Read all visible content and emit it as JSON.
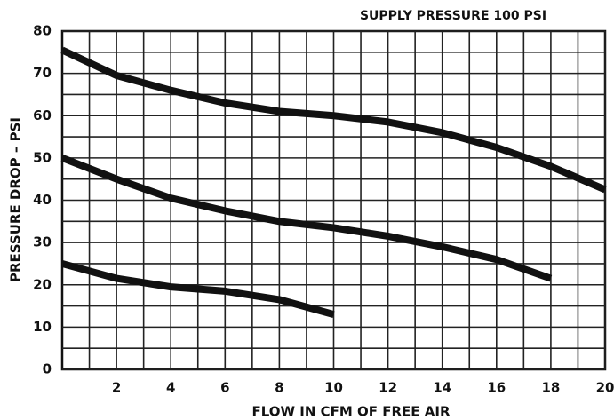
{
  "chart_data": {
    "type": "line",
    "title": "SUPPLY PRESSURE 100 PSI",
    "x_label": "FLOW IN CFM OF FREE AIR",
    "y_label": "PRESSURE DROP – PSI",
    "x": [
      0,
      2,
      4,
      6,
      8,
      10,
      12,
      14,
      16,
      18,
      20
    ],
    "series": [
      {
        "color": "#111111",
        "values": [
          75.5,
          69.5,
          66,
          63,
          61,
          60,
          58.5,
          56,
          52.5,
          48,
          42.5
        ]
      },
      {
        "color": "#111111",
        "values": [
          50,
          45,
          40.5,
          37.5,
          35,
          33.5,
          31.5,
          29,
          26,
          21.5,
          null
        ]
      },
      {
        "color": "#111111",
        "values": [
          25,
          21.5,
          19.5,
          18.5,
          16.5,
          13,
          null,
          null,
          null,
          null,
          null
        ]
      }
    ],
    "xlim": [
      0,
      20
    ],
    "xticks": [
      2,
      4,
      6,
      8,
      10,
      12,
      14,
      16,
      18,
      20
    ],
    "ylim": [
      0,
      80
    ],
    "yticks": [
      0,
      10,
      20,
      30,
      40,
      50,
      60,
      70,
      80
    ],
    "grid": true
  }
}
